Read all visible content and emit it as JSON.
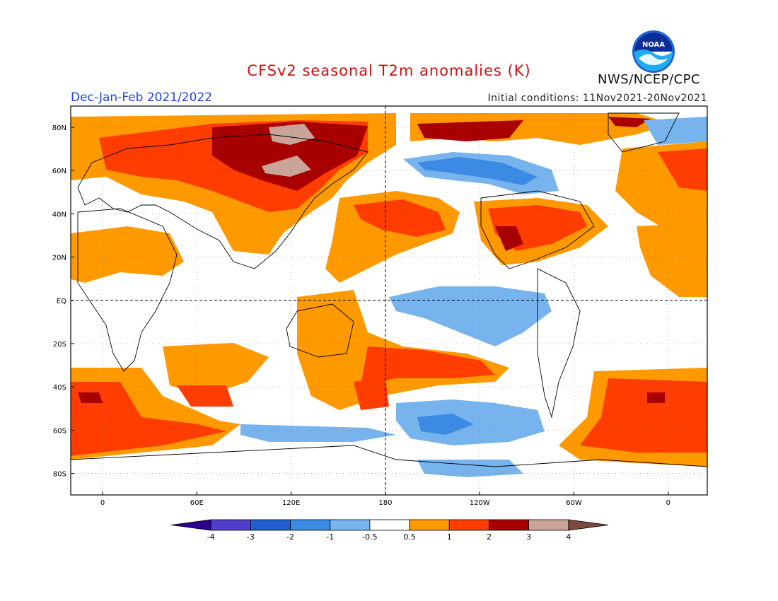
{
  "header": {
    "title": "CFSv2 seasonal T2m anomalies (K)",
    "period": "Dec-Jan-Feb 2021/2022",
    "initial_conditions": "Initial conditions: 11Nov2021-20Nov2021",
    "agency": "NWS/NCEP/CPC",
    "logo_text": "NOAA"
  },
  "colors": {
    "title": "#cc1111",
    "period": "#2244dd",
    "ocean_frame": "#000000"
  },
  "map": {
    "lat_labels": [
      "80N",
      "60N",
      "40N",
      "20N",
      "EQ",
      "20S",
      "40S",
      "60S",
      "80S"
    ],
    "lon_labels": [
      "0",
      "60E",
      "120E",
      "180",
      "120W",
      "60W",
      "0"
    ]
  },
  "legend": {
    "ticks": [
      "-4",
      "-3",
      "-2",
      "-1",
      "-0.5",
      "0.5",
      "1",
      "2",
      "3",
      "4"
    ],
    "colors": [
      "#2a008c",
      "#4f3fcc",
      "#1f5fcf",
      "#3b8be5",
      "#77b4ee",
      "#ffffff",
      "#ff9900",
      "#ff3d00",
      "#a80000",
      "#c8a598",
      "#7a4a3a"
    ]
  }
}
